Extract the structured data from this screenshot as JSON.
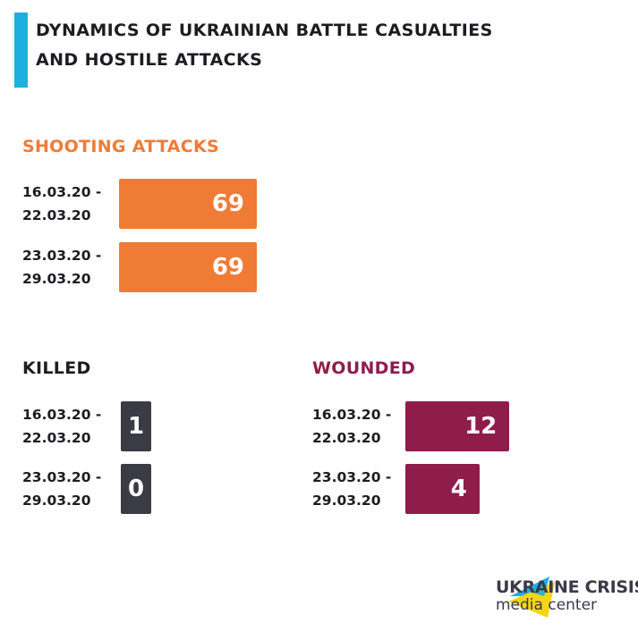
{
  "title_line1": "Dynamics of Ukrainian battle casualties",
  "title_line2": "and hostile attacks",
  "colors": {
    "accent": "#1cb0e0",
    "shooting": "#f07b35",
    "killed": "#3b3b45",
    "wounded": "#8f1d4b"
  },
  "logo": {
    "line1": "UKRAINE CRISIS",
    "line2": "media center"
  },
  "chart_data": [
    {
      "type": "bar",
      "title": "SHOOTING ATTACKS",
      "categories": [
        "16.03.20 - 22.03.20",
        "23.03.20 - 29.03.20"
      ],
      "values": [
        69,
        69
      ]
    },
    {
      "type": "bar",
      "title": "KILLED",
      "categories": [
        "16.03.20 - 22.03.20",
        "23.03.20 - 29.03.20"
      ],
      "values": [
        1,
        0
      ]
    },
    {
      "type": "bar",
      "title": "WOUNDED",
      "categories": [
        "16.03.20 - 22.03.20",
        "23.03.20 - 29.03.20"
      ],
      "values": [
        12,
        4
      ]
    }
  ]
}
